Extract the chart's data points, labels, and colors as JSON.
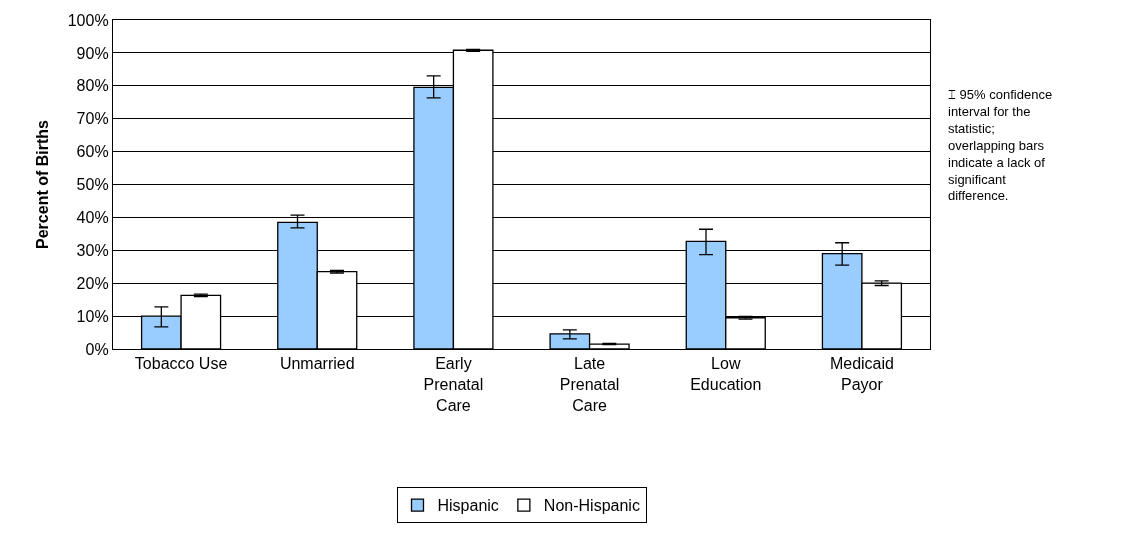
{
  "chart_data": {
    "type": "bar",
    "ylabel": "Percent of Births",
    "categories": [
      "Tobacco Use",
      "Unmarried",
      "Early Prenatal Care",
      "Late Prenatal Care",
      "Low Education",
      "Medicaid Payor"
    ],
    "series": [
      {
        "name": "Hispanic",
        "color": "#99ccff",
        "values": [
          10.0,
          38.5,
          79.5,
          4.6,
          32.7,
          29.0
        ],
        "errors": [
          [
            6.7,
            12.8
          ],
          [
            36.8,
            40.7
          ],
          [
            76.3,
            83.0
          ],
          [
            3.1,
            5.8
          ],
          [
            28.7,
            36.4
          ],
          [
            25.5,
            32.3
          ]
        ]
      },
      {
        "name": "Non-Hispanic",
        "color": "#ffffff",
        "values": [
          16.3,
          23.5,
          90.8,
          1.5,
          9.5,
          20.0
        ],
        "errors": [
          [
            15.9,
            16.7
          ],
          [
            23.1,
            23.9
          ],
          [
            90.5,
            91.1
          ],
          [
            1.3,
            1.7
          ],
          [
            9.1,
            9.9
          ],
          [
            19.3,
            20.7
          ]
        ]
      }
    ],
    "ylim": [
      0,
      100
    ],
    "yticks": [
      {
        "value": 0,
        "label": "0%"
      },
      {
        "value": 10,
        "label": "10%"
      },
      {
        "value": 20,
        "label": "20%"
      },
      {
        "value": 30,
        "label": "30%"
      },
      {
        "value": 40,
        "label": "40%"
      },
      {
        "value": 50,
        "label": "50%"
      },
      {
        "value": 60,
        "label": "60%"
      },
      {
        "value": 70,
        "label": "70%"
      },
      {
        "value": 80,
        "label": "80%"
      },
      {
        "value": 90,
        "label": "90%"
      },
      {
        "value": 100,
        "label": "100%"
      }
    ],
    "grid": "y",
    "legend": "bottom",
    "annotations": [
      "⌶ 95% confidence interval for the statistic; overlapping bars indicate a lack of significant difference."
    ]
  }
}
